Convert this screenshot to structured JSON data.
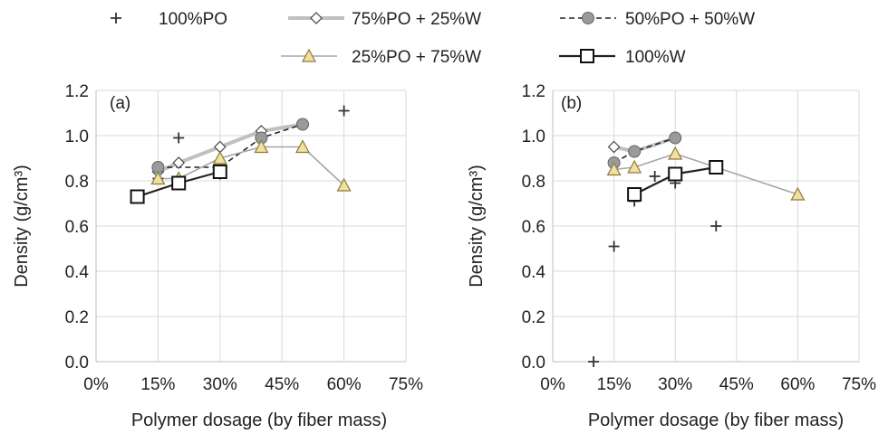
{
  "legend": [
    {
      "name": "100%PO",
      "color": "#333333",
      "marker": "plus",
      "line": "none"
    },
    {
      "name": "75%PO + 25%W",
      "color": "#bfbfbf",
      "marker": "diamond",
      "line": "solid-thick"
    },
    {
      "name": "50%PO + 50%W",
      "color": "#222222",
      "marker": "circle",
      "line": "dashed"
    },
    {
      "name": "25%PO + 75%W",
      "color": "#a6a6a6",
      "marker": "triangle",
      "line": "solid"
    },
    {
      "name": "100%W",
      "color": "#222222",
      "marker": "square",
      "line": "solid"
    }
  ],
  "chart_data": [
    {
      "type": "scatter",
      "panel_label": "(a)",
      "xlabel": "Polymer dosage (by fiber mass)",
      "ylabel": "Density (g/cm³)",
      "xlim": [
        0,
        0.75
      ],
      "ylim": [
        0,
        1.2
      ],
      "x_ticks": [
        "0%",
        "15%",
        "30%",
        "45%",
        "60%",
        "75%"
      ],
      "y_ticks": [
        "0.0",
        "0.2",
        "0.4",
        "0.6",
        "0.8",
        "1.0",
        "1.2"
      ],
      "grid": true,
      "series": [
        {
          "name": "100%PO",
          "x": [
            0.15,
            0.2,
            0.3,
            0.6
          ],
          "y": [
            0.81,
            0.99,
            0.83,
            1.11
          ]
        },
        {
          "name": "75%PO + 25%W",
          "x": [
            0.15,
            0.2,
            0.3,
            0.4,
            0.5
          ],
          "y": [
            0.84,
            0.88,
            0.95,
            1.02,
            1.05
          ]
        },
        {
          "name": "50%PO + 50%W",
          "x": [
            0.15,
            0.3,
            0.4,
            0.5
          ],
          "y": [
            0.86,
            0.86,
            0.99,
            1.05
          ]
        },
        {
          "name": "25%PO + 75%W",
          "x": [
            0.15,
            0.2,
            0.3,
            0.4,
            0.5,
            0.6
          ],
          "y": [
            0.81,
            0.81,
            0.9,
            0.95,
            0.95,
            0.78
          ]
        },
        {
          "name": "100%W",
          "x": [
            0.1,
            0.2,
            0.3
          ],
          "y": [
            0.73,
            0.79,
            0.84
          ]
        }
      ]
    },
    {
      "type": "scatter",
      "panel_label": "(b)",
      "xlabel": "Polymer dosage (by fiber mass)",
      "ylabel": "Density (g/cm³)",
      "xlim": [
        0,
        0.75
      ],
      "ylim": [
        0,
        1.2
      ],
      "x_ticks": [
        "0%",
        "15%",
        "30%",
        "45%",
        "60%",
        "75%"
      ],
      "y_ticks": [
        "0.0",
        "0.2",
        "0.4",
        "0.6",
        "0.8",
        "1.0",
        "1.2"
      ],
      "grid": true,
      "series": [
        {
          "name": "100%PO",
          "x": [
            0.1,
            0.15,
            0.2,
            0.25,
            0.3,
            0.4
          ],
          "y": [
            0.0,
            0.51,
            0.71,
            0.82,
            0.79,
            0.6
          ]
        },
        {
          "name": "75%PO + 25%W",
          "x": [
            0.15,
            0.2,
            0.3
          ],
          "y": [
            0.95,
            0.93,
            0.99
          ]
        },
        {
          "name": "50%PO + 50%W",
          "x": [
            0.15,
            0.2,
            0.3
          ],
          "y": [
            0.88,
            0.93,
            0.99
          ]
        },
        {
          "name": "25%PO + 75%W",
          "x": [
            0.15,
            0.2,
            0.3,
            0.4,
            0.6
          ],
          "y": [
            0.85,
            0.86,
            0.92,
            0.86,
            0.74
          ]
        },
        {
          "name": "100%W",
          "x": [
            0.2,
            0.3,
            0.4
          ],
          "y": [
            0.74,
            0.83,
            0.86
          ]
        }
      ]
    }
  ]
}
